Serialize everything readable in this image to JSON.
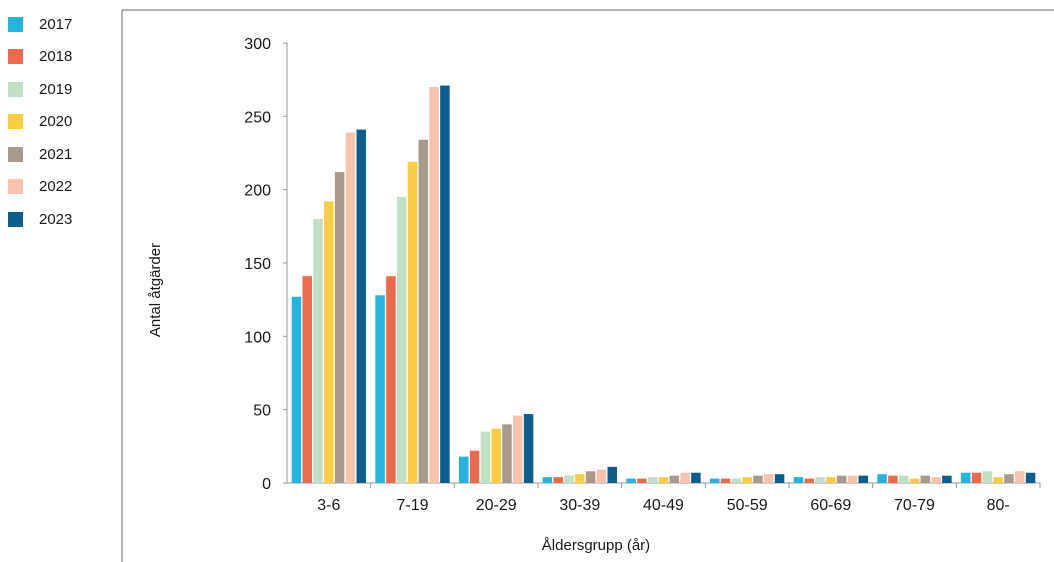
{
  "chart_data": {
    "type": "bar",
    "categories": [
      "3-6",
      "7-19",
      "20-29",
      "30-39",
      "40-49",
      "50-59",
      "60-69",
      "70-79",
      "80-"
    ],
    "series": [
      {
        "name": "2017",
        "color": "#22b5de",
        "values": [
          127,
          128,
          18,
          4,
          3,
          3,
          4,
          6,
          7
        ]
      },
      {
        "name": "2018",
        "color": "#ee6a4b",
        "values": [
          141,
          141,
          22,
          4,
          3,
          3,
          3,
          5,
          7
        ]
      },
      {
        "name": "2019",
        "color": "#c0dfc5",
        "values": [
          180,
          195,
          35,
          5,
          4,
          3,
          4,
          5,
          8
        ]
      },
      {
        "name": "2020",
        "color": "#fccc41",
        "values": [
          192,
          219,
          37,
          6,
          4,
          4,
          4,
          3,
          4
        ]
      },
      {
        "name": "2021",
        "color": "#a89a8d",
        "values": [
          212,
          234,
          40,
          8,
          5,
          5,
          5,
          5,
          6
        ]
      },
      {
        "name": "2022",
        "color": "#f8c2ab",
        "values": [
          239,
          270,
          46,
          9,
          7,
          6,
          5,
          4,
          8
        ]
      },
      {
        "name": "2023",
        "color": "#0b5e8d",
        "values": [
          241,
          271,
          47,
          11,
          7,
          6,
          5,
          5,
          7
        ]
      }
    ],
    "ylim": [
      0,
      300
    ],
    "yticks": [
      0,
      50,
      100,
      150,
      200,
      250,
      300
    ],
    "xlabel": "Åldersgrupp (år)",
    "ylabel": "Antal åtgärder",
    "grid": false,
    "legend": "top-left"
  }
}
